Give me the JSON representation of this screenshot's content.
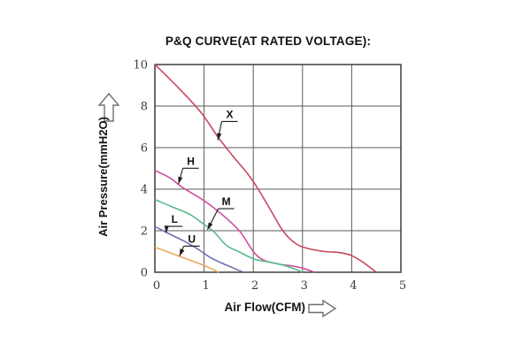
{
  "chart_data": {
    "type": "line",
    "title": "P&Q CURVE(AT RATED VOLTAGE):",
    "xlabel": "Air Flow(CFM)",
    "ylabel": "Air Pressure(mmH2O)",
    "xlim": [
      0,
      5
    ],
    "ylim": [
      0,
      10
    ],
    "xticks": [
      "0",
      "1",
      "2",
      "3",
      "4",
      "5"
    ],
    "yticks": [
      "0",
      "2",
      "4",
      "6",
      "8",
      "10"
    ],
    "grid": true,
    "legend_position": "inline-labels-with-leader-arrows",
    "axis_color": "#3d3d3d",
    "grid_color": "#5a5a5a",
    "leader_color": "#1a1a1a",
    "series": [
      {
        "name": "X",
        "color": "#c9485f",
        "points": [
          [
            0,
            10
          ],
          [
            0.45,
            8.95
          ],
          [
            0.9,
            7.8
          ],
          [
            1.1,
            7.15
          ],
          [
            1.3,
            6.45
          ],
          [
            1.6,
            5.55
          ],
          [
            1.9,
            4.7
          ],
          [
            2.1,
            4.0
          ],
          [
            2.35,
            3.0
          ],
          [
            2.6,
            2.0
          ],
          [
            2.85,
            1.4
          ],
          [
            3.1,
            1.15
          ],
          [
            3.45,
            1.0
          ],
          [
            3.75,
            0.95
          ],
          [
            4.0,
            0.8
          ],
          [
            4.25,
            0.45
          ],
          [
            4.5,
            0
          ]
        ],
        "label_at": [
          1.52,
          7.6
        ],
        "arrow_tip": [
          1.28,
          6.35
        ]
      },
      {
        "name": "H",
        "color": "#cf4f9b",
        "points": [
          [
            0,
            4.9
          ],
          [
            0.3,
            4.55
          ],
          [
            0.55,
            4.1
          ],
          [
            0.9,
            3.6
          ],
          [
            1.2,
            3.1
          ],
          [
            1.5,
            2.5
          ],
          [
            1.75,
            1.9
          ],
          [
            2.0,
            1.0
          ],
          [
            2.2,
            0.6
          ],
          [
            2.5,
            0.4
          ],
          [
            2.8,
            0.3
          ],
          [
            3.0,
            0.2
          ],
          [
            3.25,
            0
          ]
        ],
        "label_at": [
          0.73,
          5.35
        ],
        "arrow_tip": [
          0.48,
          4.25
        ]
      },
      {
        "name": "M",
        "color": "#57bb8d",
        "points": [
          [
            0,
            3.5
          ],
          [
            0.35,
            3.15
          ],
          [
            0.7,
            2.8
          ],
          [
            1.0,
            2.3
          ],
          [
            1.2,
            1.95
          ],
          [
            1.45,
            1.3
          ],
          [
            1.7,
            1.0
          ],
          [
            2.0,
            0.65
          ],
          [
            2.3,
            0.5
          ],
          [
            2.6,
            0.35
          ],
          [
            2.85,
            0.15
          ],
          [
            3.0,
            0
          ]
        ],
        "label_at": [
          1.45,
          3.4
        ],
        "arrow_tip": [
          1.07,
          2.05
        ]
      },
      {
        "name": "L",
        "color": "#7173ad",
        "points": [
          [
            0,
            2.2
          ],
          [
            0.25,
            1.9
          ],
          [
            0.55,
            1.55
          ],
          [
            0.85,
            1.15
          ],
          [
            1.1,
            0.75
          ],
          [
            1.35,
            0.45
          ],
          [
            1.6,
            0.2
          ],
          [
            1.8,
            0
          ]
        ],
        "label_at": [
          0.4,
          2.55
        ],
        "arrow_tip": [
          0.23,
          1.9
        ]
      },
      {
        "name": "U",
        "color": "#eca95f",
        "points": [
          [
            0,
            1.2
          ],
          [
            0.3,
            0.95
          ],
          [
            0.6,
            0.68
          ],
          [
            0.9,
            0.42
          ],
          [
            1.1,
            0.22
          ],
          [
            1.3,
            0
          ]
        ],
        "label_at": [
          0.75,
          1.6
        ],
        "arrow_tip": [
          0.5,
          0.78
        ]
      }
    ]
  }
}
